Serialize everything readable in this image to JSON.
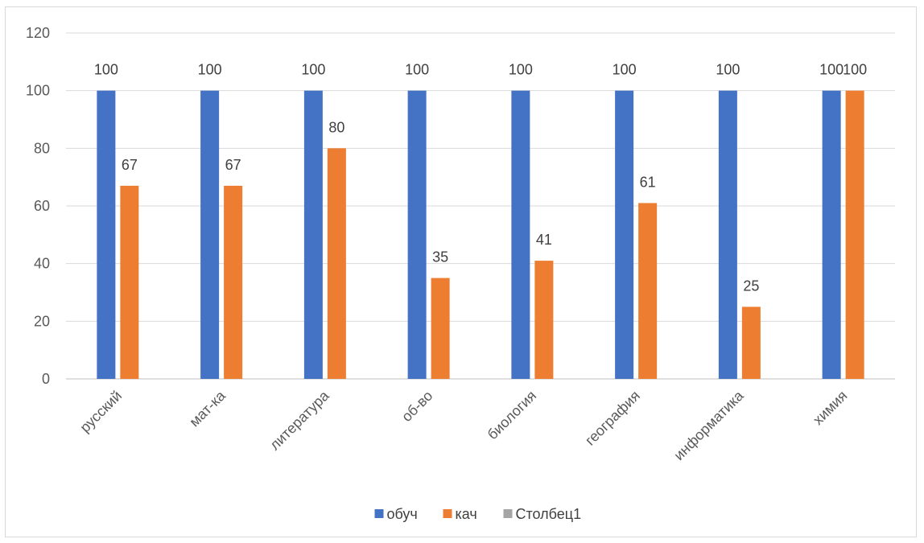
{
  "chart_data": {
    "type": "bar",
    "categories": [
      "русский",
      "мат-ка",
      "литература",
      "об-во",
      "биология",
      "география",
      "информатика",
      "химия"
    ],
    "series": [
      {
        "name": "обуч",
        "color": "#4472C4",
        "values": [
          100,
          100,
          100,
          100,
          100,
          100,
          100,
          100
        ]
      },
      {
        "name": "кач",
        "color": "#ED7D31",
        "values": [
          67,
          67,
          80,
          35,
          41,
          61,
          25,
          100
        ]
      },
      {
        "name": "Столбец1",
        "color": "#A5A5A5",
        "values": [
          null,
          null,
          null,
          null,
          null,
          null,
          null,
          null
        ]
      }
    ],
    "ylim": [
      0,
      120
    ],
    "yticks": [
      0,
      20,
      40,
      60,
      80,
      100,
      120
    ],
    "grid": true,
    "legend": "bottom",
    "title": "",
    "xlabel": "",
    "ylabel": ""
  }
}
